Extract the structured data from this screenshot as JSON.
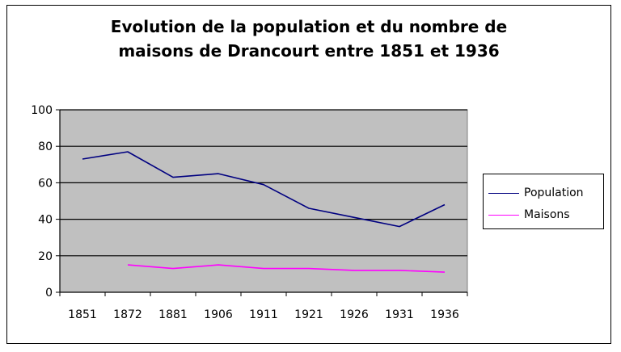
{
  "chart_data": {
    "type": "line",
    "title": "Evolution de la population et du nombre de\nmaisons de Drancourt entre 1851 et 1936",
    "categories": [
      "1851",
      "1872",
      "1881",
      "1906",
      "1911",
      "1921",
      "1926",
      "1931",
      "1936"
    ],
    "ylim": [
      0,
      100
    ],
    "yticks": [
      0,
      20,
      40,
      60,
      80,
      100
    ],
    "grid": true,
    "legend_position": "right",
    "plot_background": "#c0c0c0",
    "series": [
      {
        "name": "Population",
        "color": "#000080",
        "values": [
          73,
          77,
          63,
          65,
          59,
          46,
          41,
          36,
          48
        ]
      },
      {
        "name": "Maisons",
        "color": "#ff00ff",
        "values": [
          null,
          15,
          13,
          15,
          13,
          13,
          12,
          12,
          11
        ]
      }
    ]
  }
}
